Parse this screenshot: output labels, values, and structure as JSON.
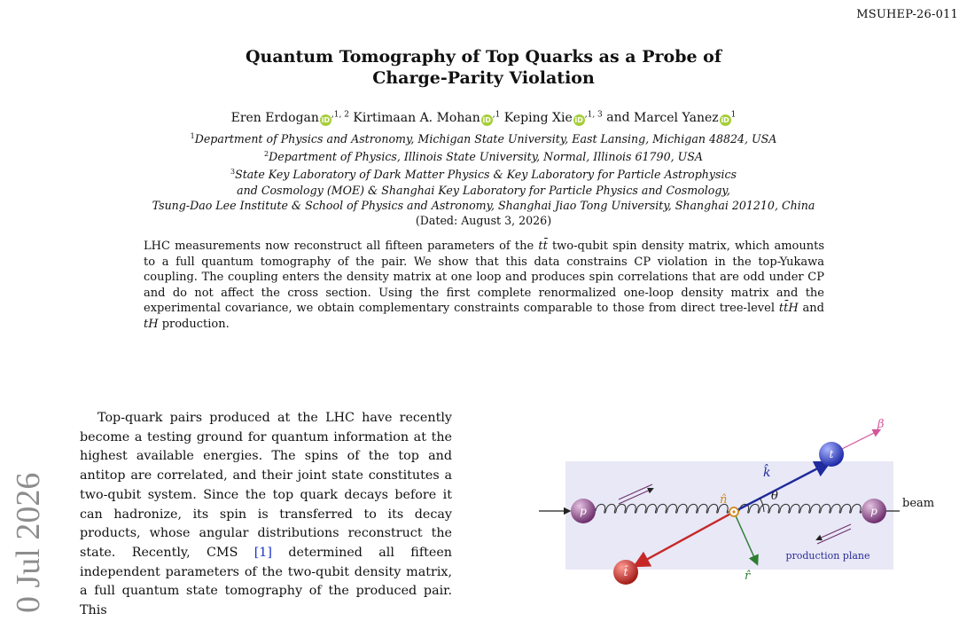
{
  "report_number": "MSUHEP-26-011",
  "title_line1": "Quantum Tomography of Top Quarks as a Probe of",
  "title_line2": "Charge-Parity Violation",
  "authors": [
    {
      "name": "Eren Erdogan",
      "affil": ",1, 2"
    },
    {
      "name": "Kirtimaan A. Mohan",
      "affil": ",1"
    },
    {
      "name": "Keping Xie",
      "affil": ",1, 3"
    },
    {
      "name": "Marcel Yanez",
      "affil": "1"
    }
  ],
  "author_sep_and": "and",
  "orcid_mark": "iD",
  "affiliations": {
    "a1_num": "1",
    "a1": "Department of Physics and Astronomy, Michigan State University, East Lansing, Michigan 48824, USA",
    "a2_num": "2",
    "a2": "Department of Physics, Illinois State University, Normal, Illinois 61790, USA",
    "a3_num": "3",
    "a3_l1": "State Key Laboratory of Dark Matter Physics & Key Laboratory for Particle Astrophysics",
    "a3_l2": "and Cosmology (MOE) & Shanghai Key Laboratory for Particle Physics and Cosmology,",
    "a3_l3": "Tsung-Dao Lee Institute & School of Physics and Astronomy, Shanghai Jiao Tong University, Shanghai 201210, China"
  },
  "dated": "(Dated: August 3, 2026)",
  "abstract": {
    "p1": "LHC measurements now reconstruct all fifteen parameters of the ",
    "p2": " two-qubit spin density matrix, which amounts to a full quantum tomography of the pair. We show that this data constrains CP violation in the top-Yukawa coupling. The coupling enters the density matrix at one loop and produces spin correlations that are odd under CP and do not affect the cross section. Using the first complete renormalized one-loop density matrix and the experimental covariance, we obtain complementary constraints comparable to those from direct tree-level ",
    "p3": " and ",
    "p4": " production.",
    "sym_ttbar": "tt̄",
    "sym_ttH": "tt̄H",
    "sym_tH": "tH"
  },
  "body": {
    "p1_a": "Top-quark pairs produced at the LHC have recently become a testing ground for quantum information at the highest available energies. The spins of the top and antitop are correlated, and their joint state constitutes a two-qubit system. Since the top quark decays before it can hadronize, its spin is transferred to its decay products, whose angular distributions reconstruct the state. Recently, CMS ",
    "cite1": "[1]",
    "p1_b": " determined all fifteen independent parameters of the two-qubit density matrix, a full quantum state tomography of the produced pair. This"
  },
  "arxiv_watermark": "0 Jul 2026",
  "figure": {
    "label_beta": "β",
    "label_t": "t",
    "label_tbar": "t̄",
    "label_p": "p",
    "label_khat": "k̂",
    "label_nhat": "n̂",
    "label_rhat": "r̂",
    "label_theta": "θ",
    "label_beam": "beam",
    "label_plane": "production plane",
    "colors": {
      "plane": "#e8e8f6",
      "k_arrow": "#1f2a9c",
      "tbar_arrow": "#c62828",
      "r_arrow": "#2e7d32",
      "n_color": "#d08a1a",
      "beta": "#d4569a",
      "proton": "#8a4a88",
      "top": "#3a4ed6",
      "antitop": "#c8342e",
      "plane_text": "#2a2a9a"
    }
  }
}
